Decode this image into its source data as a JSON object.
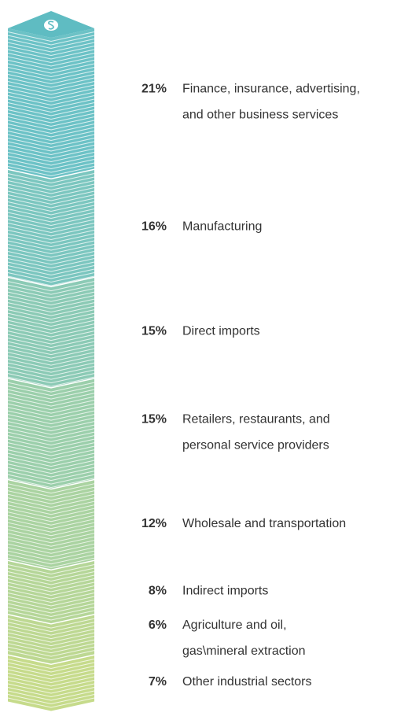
{
  "chart_data": {
    "type": "stack",
    "categories": [
      [
        "Finance, insurance, advertising,",
        "and other business services"
      ],
      [
        "Manufacturing"
      ],
      [
        "Direct imports"
      ],
      [
        "Retailers, restaurants, and",
        "personal service providers"
      ],
      [
        "Wholesale and transportation"
      ],
      [
        "Indirect imports"
      ],
      [
        "Agriculture and oil,",
        "gas\\mineral extraction"
      ],
      [
        "Other industrial sectors"
      ]
    ],
    "values": [
      21,
      16,
      15,
      15,
      12,
      8,
      6,
      7
    ],
    "value_labels": [
      "21%",
      "16%",
      "15%",
      "15%",
      "12%",
      "8%",
      "6%",
      "7%"
    ],
    "colors": [
      "#6cc2c6",
      "#7bc6bf",
      "#8bcab5",
      "#9bcfab",
      "#aad3a1",
      "#b5d698",
      "#bdd892",
      "#c6db8b"
    ]
  }
}
